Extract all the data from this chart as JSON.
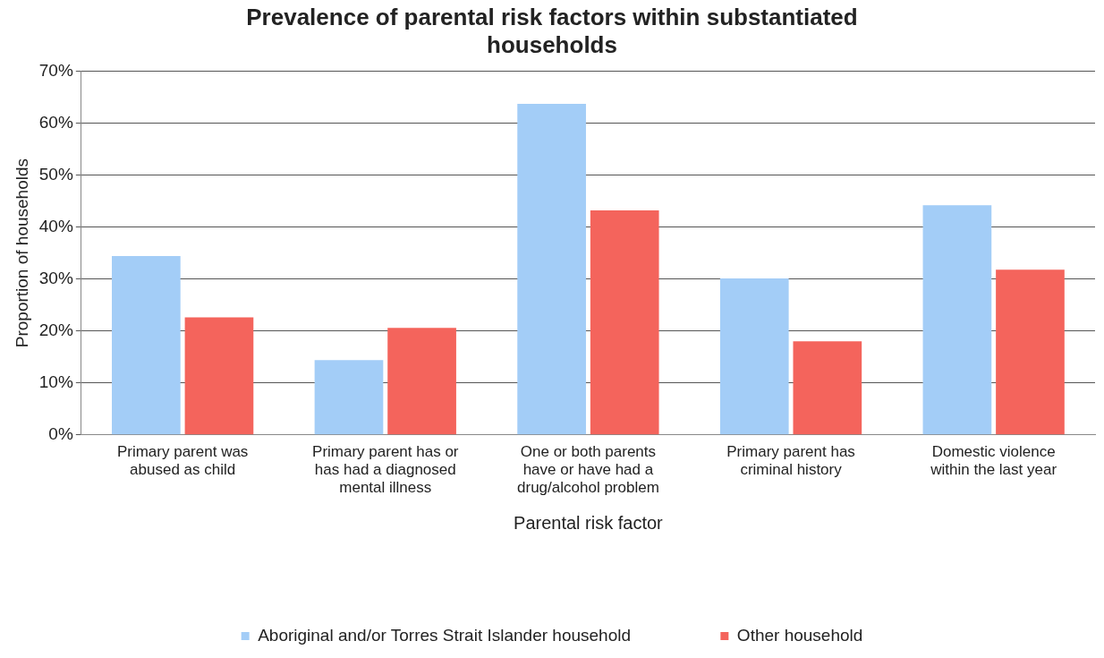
{
  "chart_data": {
    "type": "bar",
    "title": "Prevalence of parental risk factors within substantiated households",
    "xlabel": "Parental risk factor",
    "ylabel": "Proportion of households",
    "categories": [
      "Primary parent was abused as child",
      "Primary parent has or has had a diagnosed mental illness",
      "One or both parents have or have had a drug/alcohol problem",
      "Primary parent has criminal history",
      "Domestic violence within the last year"
    ],
    "series": [
      {
        "name": "Aboriginal and/or Torres Strait Islander household",
        "color": "#a3cdf7",
        "values": [
          34.4,
          14.4,
          63.7,
          30.1,
          44.2
        ]
      },
      {
        "name": "Other household",
        "color": "#f4645c",
        "values": [
          22.6,
          20.6,
          43.2,
          18.0,
          31.8
        ]
      }
    ],
    "ylim": [
      0,
      70
    ],
    "yticks": [
      {
        "value": 0,
        "label": "0%"
      },
      {
        "value": 10,
        "label": "10%"
      },
      {
        "value": 20,
        "label": "20%"
      },
      {
        "value": 30,
        "label": "30%"
      },
      {
        "value": 40,
        "label": "40%"
      },
      {
        "value": 50,
        "label": "50%"
      },
      {
        "value": 60,
        "label": "60%"
      },
      {
        "value": 70,
        "label": "70%"
      }
    ],
    "grid": "y",
    "legend": "bottom"
  }
}
